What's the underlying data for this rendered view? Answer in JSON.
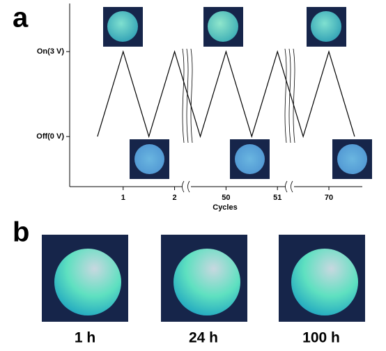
{
  "panels": {
    "a": "a",
    "b": "b"
  },
  "chart_data": {
    "type": "line",
    "x": [
      0.5,
      1,
      1.5,
      2,
      2.5,
      3,
      3.5,
      4,
      4.5,
      5,
      5.5
    ],
    "values": [
      0,
      3,
      0,
      3,
      0,
      3,
      0,
      3,
      0,
      3,
      0
    ],
    "color": "#000000",
    "xlabel": "Cycles",
    "xlim": [
      -0.04,
      5.65
    ],
    "xticks": [
      {
        "value": 1,
        "label": "1"
      },
      {
        "value": 2,
        "label": "2"
      },
      {
        "value": 3,
        "label": "50"
      },
      {
        "value": 4,
        "label": "51"
      },
      {
        "value": 5,
        "label": "70"
      }
    ],
    "ylim": [
      -1.77,
      4.7
    ],
    "yticks": [
      {
        "value": 0,
        "label": "Off(0 V)"
      },
      {
        "value": 3,
        "label": "On(3 V)"
      }
    ]
  },
  "images": {
    "labels": [
      "1 h",
      "24 h",
      "100 h"
    ]
  }
}
